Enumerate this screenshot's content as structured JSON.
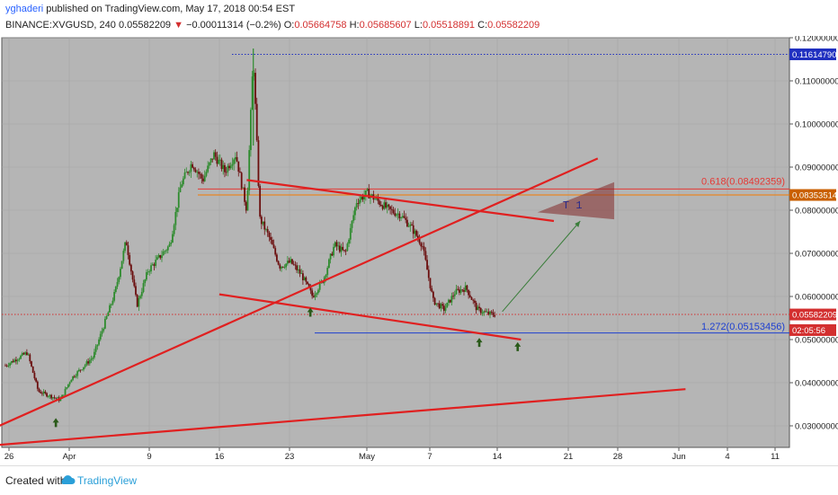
{
  "header": {
    "author": "yghaderi",
    "published": "published on TradingView.com, May 17, 2018 00:54 EST",
    "symbol": "BINANCE:XVGUSD, 240",
    "last": "0.05582209",
    "change": "−0.00011314 (−0.2%)",
    "o_label": "O:",
    "o": "0.05664758",
    "h_label": "H:",
    "h": "0.05685607",
    "l_label": "L:",
    "l": "0.05518891",
    "c_label": "C:",
    "c": "0.05582209"
  },
  "footer": {
    "created_with": "Created with",
    "brand": "TradingView"
  },
  "colors": {
    "plot_bg": "#b5b5b5",
    "trend": "#e02020",
    "fib_red": "#e53935",
    "fib_orange": "#f57c00",
    "blue": "#1e40d0",
    "bull": "#2e8b2e",
    "bear": "#6b0f0f"
  },
  "chart_data": {
    "type": "candlestick",
    "symbol": "BINANCE:XVGUSD",
    "timeframe": "240",
    "ylim": [
      0.025,
      0.12
    ],
    "y_ticks": [
      "0.12000000",
      "0.11000000",
      "0.10000000",
      "0.09000000",
      "0.08000000",
      "0.07000000",
      "0.06000000",
      "0.05000000",
      "0.04000000",
      "0.03000000"
    ],
    "x_ticks": [
      "26",
      "Apr",
      "9",
      "16",
      "23",
      "May",
      "7",
      "14",
      "21",
      "28",
      "Jun",
      "4",
      "11"
    ],
    "price_path": [
      [
        0,
        0.044
      ],
      [
        2,
        0.047
      ],
      [
        3,
        0.038
      ],
      [
        5,
        0.036
      ],
      [
        6,
        0.041
      ],
      [
        8,
        0.046
      ],
      [
        10,
        0.061
      ],
      [
        11,
        0.073
      ],
      [
        12,
        0.058
      ],
      [
        13,
        0.066
      ],
      [
        15,
        0.072
      ],
      [
        16,
        0.086
      ],
      [
        17,
        0.091
      ],
      [
        18,
        0.087
      ],
      [
        19,
        0.093
      ],
      [
        20,
        0.089
      ],
      [
        21,
        0.093
      ],
      [
        22,
        0.08
      ],
      [
        22.6,
        0.116
      ],
      [
        23.2,
        0.078
      ],
      [
        24,
        0.074
      ],
      [
        25,
        0.067
      ],
      [
        26,
        0.068
      ],
      [
        27,
        0.065
      ],
      [
        28,
        0.06
      ],
      [
        29,
        0.064
      ],
      [
        30,
        0.072
      ],
      [
        31,
        0.07
      ],
      [
        32,
        0.082
      ],
      [
        33,
        0.084
      ],
      [
        34,
        0.082
      ],
      [
        35,
        0.08
      ],
      [
        36,
        0.079
      ],
      [
        37,
        0.076
      ],
      [
        38,
        0.072
      ],
      [
        39,
        0.059
      ],
      [
        40,
        0.057
      ],
      [
        41,
        0.061
      ],
      [
        42,
        0.062
      ],
      [
        43,
        0.057
      ],
      [
        44,
        0.056
      ],
      [
        44.6,
        0.0558
      ]
    ],
    "price_labels": [
      {
        "value": 0.1161479,
        "text": "0.11614790",
        "color": "#2030c0"
      },
      {
        "value": 0.08353514,
        "text": "0.08353514",
        "color": "#c95f00"
      },
      {
        "value": 0.05582209,
        "text": "0.05582209",
        "color": "#d32f2f"
      },
      {
        "value": 0.0522,
        "text": "02:05:56",
        "color": "#d32f2f"
      }
    ],
    "horizontal_levels": [
      {
        "value": 0.1161479,
        "color": "#2030c0",
        "style": "dotted"
      },
      {
        "value": 0.08353514,
        "color": "#f57c00",
        "style": "solid"
      },
      {
        "value": 0.08492359,
        "color": "#e53935",
        "style": "solid"
      },
      {
        "value": 0.05582209,
        "color": "#d32f2f",
        "style": "dotted"
      },
      {
        "value": 0.05153456,
        "color": "#1e40d0",
        "style": "solid"
      }
    ],
    "annotations": [
      {
        "text": "0.618(0.08492359)",
        "color": "#e53935"
      },
      {
        "text": "1.272(0.05153456)",
        "color": "#1e40d0"
      },
      {
        "text": "T 1",
        "color": "#2a2a8a"
      }
    ],
    "trendlines": [
      {
        "from": [
          -1,
          0.0295
        ],
        "to": [
          54,
          0.092
        ]
      },
      {
        "from": [
          -1,
          0.0255
        ],
        "to": [
          62,
          0.0385
        ]
      },
      {
        "from": [
          22,
          0.087
        ],
        "to": [
          50,
          0.0775
        ]
      },
      {
        "from": [
          19.5,
          0.0605
        ],
        "to": [
          47,
          0.05
        ]
      }
    ]
  }
}
